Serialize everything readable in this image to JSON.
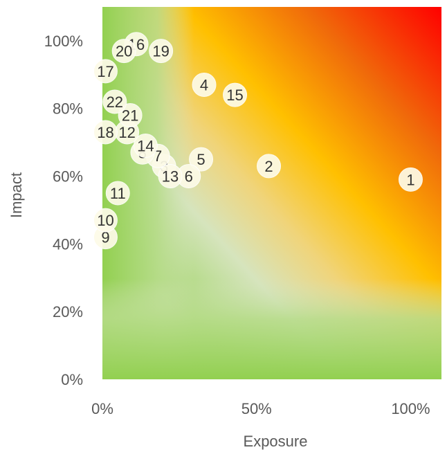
{
  "chart_data": {
    "type": "scatter",
    "title": "",
    "xlabel": "Exposure",
    "ylabel": "Impact",
    "xlim": [
      0,
      1.1
    ],
    "ylim": [
      0,
      1.1
    ],
    "x_ticks": [
      0,
      0.5,
      1.0
    ],
    "x_tick_labels": [
      "0%",
      "50%",
      "100%"
    ],
    "y_ticks": [
      0,
      0.2,
      0.4,
      0.6,
      0.8,
      1.0
    ],
    "y_tick_labels": [
      "0%",
      "20%",
      "40%",
      "60%",
      "80%",
      "100%"
    ],
    "background": "risk heatmap gradient (green low → yellow/orange → red high)",
    "colors": {
      "low": "#92d050",
      "mid": "#ffc000",
      "high": "#ff0000",
      "bubble": "#fdfbe8"
    },
    "points": [
      {
        "label": "1",
        "x": 1.0,
        "y": 0.59
      },
      {
        "label": "2",
        "x": 0.54,
        "y": 0.63
      },
      {
        "label": "3",
        "x": 0.2,
        "y": 0.63
      },
      {
        "label": "4",
        "x": 0.33,
        "y": 0.87
      },
      {
        "label": "5",
        "x": 0.32,
        "y": 0.65
      },
      {
        "label": "6",
        "x": 0.28,
        "y": 0.6
      },
      {
        "label": "7",
        "x": 0.18,
        "y": 0.66
      },
      {
        "label": "8",
        "x": 0.13,
        "y": 0.67
      },
      {
        "label": "9",
        "x": 0.01,
        "y": 0.42
      },
      {
        "label": "10",
        "x": 0.01,
        "y": 0.47
      },
      {
        "label": "11",
        "x": 0.05,
        "y": 0.55
      },
      {
        "label": "12",
        "x": 0.08,
        "y": 0.73
      },
      {
        "label": "13",
        "x": 0.22,
        "y": 0.6
      },
      {
        "label": "14",
        "x": 0.14,
        "y": 0.69
      },
      {
        "label": "15",
        "x": 0.43,
        "y": 0.84
      },
      {
        "label": "16",
        "x": 0.11,
        "y": 0.99
      },
      {
        "label": "17",
        "x": 0.01,
        "y": 0.91
      },
      {
        "label": "18",
        "x": 0.01,
        "y": 0.73
      },
      {
        "label": "19",
        "x": 0.19,
        "y": 0.97
      },
      {
        "label": "20",
        "x": 0.07,
        "y": 0.97
      },
      {
        "label": "21",
        "x": 0.09,
        "y": 0.78
      },
      {
        "label": "22",
        "x": 0.04,
        "y": 0.82
      }
    ]
  }
}
